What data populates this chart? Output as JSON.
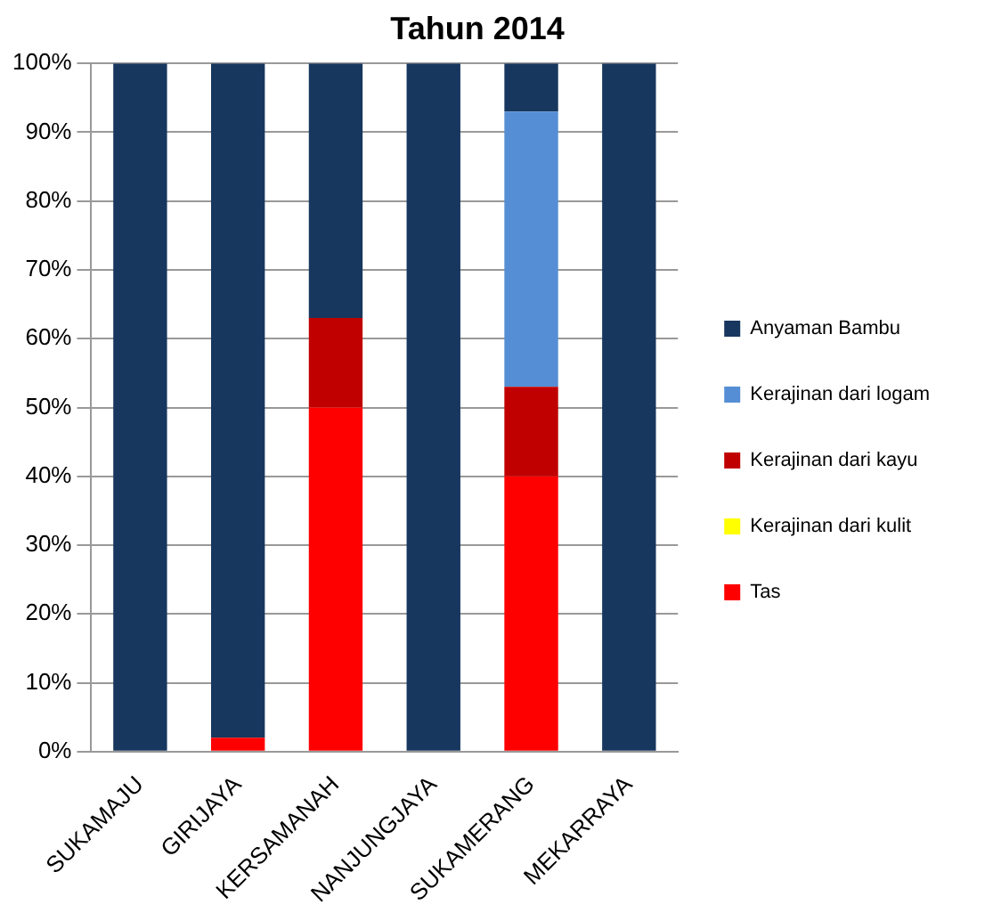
{
  "chart_data": {
    "type": "bar",
    "title": "Tahun 2014",
    "stacked": true,
    "categories": [
      "SUKAMAJU",
      "GIRIJAYA",
      "KERSAMANAH",
      "NANJUNGJAYA",
      "SUKAMERANG",
      "MEKARRAYA"
    ],
    "series": [
      {
        "name": "Tas",
        "color": "#ff0000",
        "values": [
          0,
          2,
          50,
          0,
          40,
          0
        ]
      },
      {
        "name": "Kerajinan dari kulit",
        "color": "#ffff00",
        "values": [
          0,
          0,
          0,
          0,
          0,
          0
        ]
      },
      {
        "name": "Kerajinan dari kayu",
        "color": "#c00000",
        "values": [
          0,
          0,
          13,
          0,
          13,
          0
        ]
      },
      {
        "name": "Kerajinan dari logam",
        "color": "#558ed5",
        "values": [
          0,
          0,
          0,
          0,
          40,
          0
        ]
      },
      {
        "name": "Anyaman Bambu",
        "color": "#17375e",
        "values": [
          100,
          98,
          37,
          100,
          7,
          100
        ]
      }
    ],
    "ylim": [
      0,
      100
    ],
    "yticks": [
      {
        "value": 0,
        "label": "0%"
      },
      {
        "value": 10,
        "label": "10%"
      },
      {
        "value": 20,
        "label": "20%"
      },
      {
        "value": 30,
        "label": "30%"
      },
      {
        "value": 40,
        "label": "40%"
      },
      {
        "value": 50,
        "label": "50%"
      },
      {
        "value": 60,
        "label": "60%"
      },
      {
        "value": 70,
        "label": "70%"
      },
      {
        "value": 80,
        "label": "80%"
      },
      {
        "value": 90,
        "label": "90%"
      },
      {
        "value": 100,
        "label": "100%"
      }
    ],
    "grid": "y",
    "legend": "right"
  }
}
